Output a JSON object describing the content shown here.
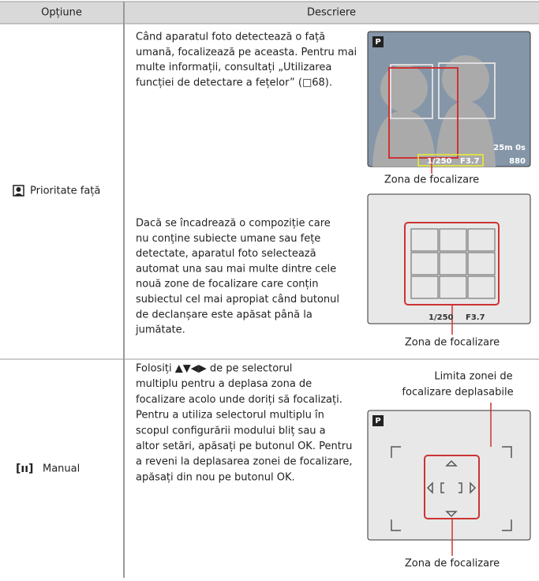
{
  "header": {
    "option": "Opțiune",
    "description": "Descriere"
  },
  "rows": [
    {
      "option": "Prioritate față",
      "paragraphs": [
        [
          "Când aparatul foto detectează o față",
          "umană, focalizează pe aceasta. Pentru mai",
          "multe informații, consultați „Utilizarea",
          "funcției de detectare a fețelor” (□68)."
        ],
        [
          "Dacă se încadrează o compoziție care",
          "nu conține subiecte umane sau fețe",
          "detectate, aparatul foto selectează",
          "automat una sau mai multe dintre cele",
          "nouă zone de focalizare care conțin",
          "subiectul cel mai apropiat când butonul",
          "de declanșare este apăsat până la",
          "jumătate."
        ]
      ],
      "screens": [
        {
          "mode": "P",
          "shutter": "1/250",
          "aperture": "F3.7",
          "shots": "880",
          "time": "25m 0s"
        },
        {
          "shutter": "1/250",
          "aperture": "F3.7"
        }
      ],
      "captions": [
        "Zona de focalizare",
        "Zona de focalizare"
      ]
    },
    {
      "option": "Manual",
      "paragraphs": [
        [
          "Folosiți ▲▼◀▶ de pe selectorul",
          "multiplu pentru a deplasa zona de",
          "focalizare acolo unde doriți să focalizați.",
          "Pentru a utiliza selectorul multiplu în",
          "scopul configurării modului bliț sau a",
          "altor setări, apăsați pe butonul OK. Pentru",
          "a reveni la deplasarea zonei de focalizare,",
          "apăsați din nou pe butonul OK."
        ]
      ],
      "screens": [
        {
          "mode": "P"
        }
      ],
      "captions": [
        "Limita zonei de",
        "focalizare deplasabile",
        "Zona de focalizare"
      ]
    }
  ]
}
